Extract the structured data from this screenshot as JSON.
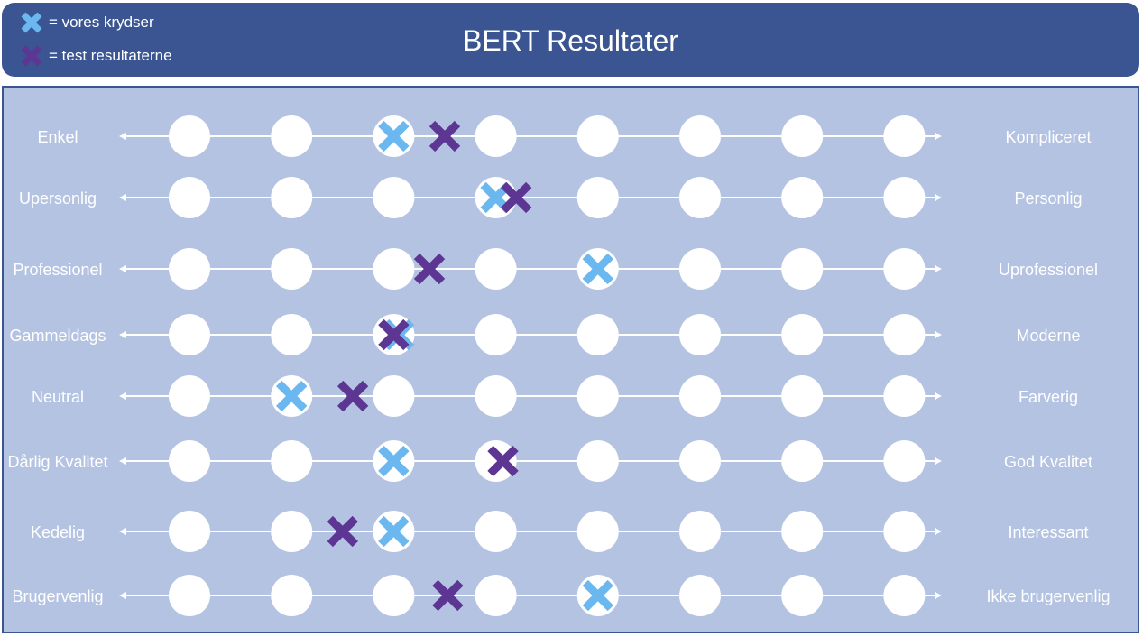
{
  "title": "BERT Resultater",
  "legend": [
    {
      "label": "= vores krydser",
      "color": "#6ab8ef",
      "icon": "x-mark-icon"
    },
    {
      "label": "= test resultaterne",
      "color": "#5d3593",
      "icon": "x-mark-icon"
    }
  ],
  "colors": {
    "header": "#3a5592",
    "panel": "#b4c3e2",
    "ours": "#6ab8ef",
    "test": "#5d3593"
  },
  "chart_data": {
    "type": "semantic-differential",
    "title": "BERT Resultater",
    "scale_points": 8,
    "series": [
      {
        "name": "= vores krydser"
      },
      {
        "name": "= test resultaterne"
      }
    ],
    "rows": [
      {
        "left": "Enkel",
        "right": "Kompliceret",
        "ours": 3,
        "test": 3.5
      },
      {
        "left": "Upersonlig",
        "right": "Personlig",
        "ours": 4,
        "test": 4.2
      },
      {
        "left": "Professionel",
        "right": "Uprofessionel",
        "ours": 5,
        "test": 3.35
      },
      {
        "left": "Gammeldags",
        "right": "Moderne",
        "ours": 3.05,
        "test": 3
      },
      {
        "left": "Neutral",
        "right": "Farverig",
        "ours": 2,
        "test": 2.6
      },
      {
        "left": "Dårlig Kvalitet",
        "right": "God Kvalitet",
        "ours": 3,
        "test": 4.07
      },
      {
        "left": "Kedelig",
        "right": "Interessant",
        "ours": 3,
        "test": 2.5
      },
      {
        "left": "Brugervenlig",
        "right": "Ikke brugervenlig",
        "ours": 5,
        "test": 3.53
      }
    ]
  }
}
